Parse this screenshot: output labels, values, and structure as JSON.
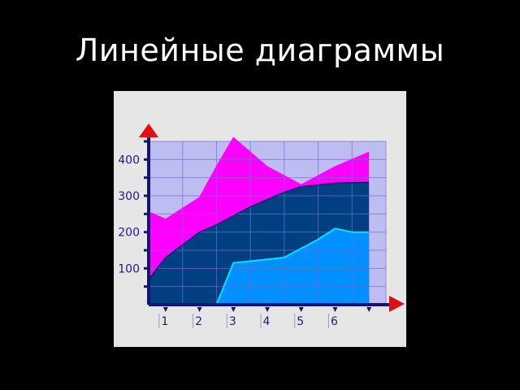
{
  "title": "Линейные диаграммы",
  "colors": {
    "background": "#000000",
    "card": "#e6e6e6",
    "plot_background": "#bdbdf2",
    "grid": "#6f6fd0",
    "axis": "#141478",
    "arrow": "#e01010",
    "series_top": "#ff00ff",
    "series_middle": "#004080",
    "series_bottom": "#0090ff",
    "line_bottom": "#00e0ff"
  },
  "chart_data": {
    "type": "area",
    "title": "",
    "xlabel": "",
    "ylabel": "",
    "ylim": [
      0,
      450
    ],
    "yticks": [
      100,
      200,
      300,
      400
    ],
    "x_tick_labels": [
      "1",
      "2",
      "3",
      "4",
      "5",
      "6"
    ],
    "x": [
      0.5,
      1,
      1.5,
      2,
      2.5,
      3,
      3.5,
      4,
      4.5,
      5,
      5.5,
      6,
      6.5,
      7
    ],
    "series": [
      {
        "values": [
          255,
          235,
          265,
          295,
          380,
          460,
          420,
          380,
          355,
          330,
          355,
          380,
          400,
          420
        ],
        "color": "#ff00ff"
      },
      {
        "values": [
          70,
          130,
          165,
          200,
          220,
          245,
          270,
          290,
          310,
          325,
          330,
          335,
          336,
          337
        ],
        "color": "#004080"
      },
      {
        "values": [
          null,
          null,
          null,
          null,
          0,
          115,
          120,
          125,
          130,
          155,
          180,
          210,
          200,
          200
        ],
        "color": "#0090ff"
      }
    ]
  }
}
